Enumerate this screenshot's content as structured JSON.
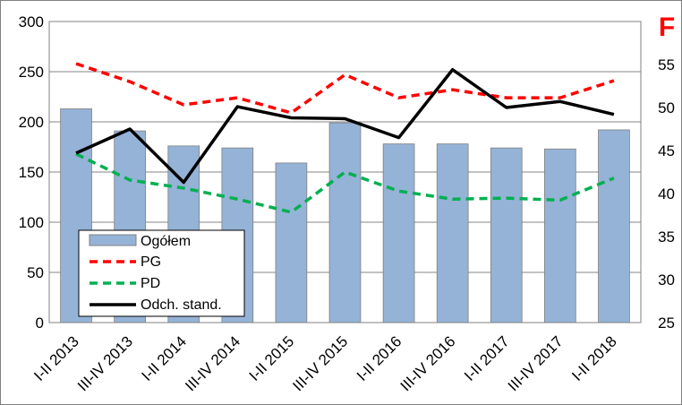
{
  "chart_data": {
    "type": "bar+line",
    "corner_label": "F",
    "categories": [
      "I-II 2013",
      "III-IV 2013",
      "I-II 2014",
      "III-IV 2014",
      "I-II 2015",
      "III-IV 2015",
      "I-II 2016",
      "III-IV 2016",
      "I-II 2017",
      "III-IV 2017",
      "I-II 2018"
    ],
    "y_left": {
      "ylim": [
        0,
        300
      ],
      "ticks": [
        0,
        50,
        100,
        150,
        200,
        250,
        300
      ]
    },
    "y_right": {
      "ylim": [
        25,
        60
      ],
      "ticks": [
        25,
        30,
        35,
        40,
        45,
        50,
        55
      ]
    },
    "grid": "horizontal",
    "legend_position": "bottom-left",
    "series": [
      {
        "name": "Ogółem",
        "kind": "bar",
        "axis": "left",
        "color": "#95b3d7",
        "values": [
          213,
          191,
          176,
          174,
          159,
          199,
          178,
          178,
          174,
          173,
          192
        ]
      },
      {
        "name": "PG",
        "kind": "dashed-line",
        "axis": "left",
        "color": "#ff0000",
        "values": [
          258,
          240,
          217,
          224,
          209,
          247,
          224,
          232,
          224,
          224,
          241
        ]
      },
      {
        "name": "PD",
        "kind": "dashed-line",
        "axis": "left",
        "color": "#00b050",
        "values": [
          168,
          142,
          134,
          123,
          110,
          150,
          131,
          123,
          124,
          122,
          144
        ]
      },
      {
        "name": "Odch. stand.",
        "kind": "line",
        "axis": "right",
        "color": "#000000",
        "values": [
          44.7,
          47.5,
          41.3,
          50.1,
          48.8,
          48.7,
          46.5,
          54.4,
          50.0,
          50.7,
          49.2
        ]
      }
    ]
  }
}
